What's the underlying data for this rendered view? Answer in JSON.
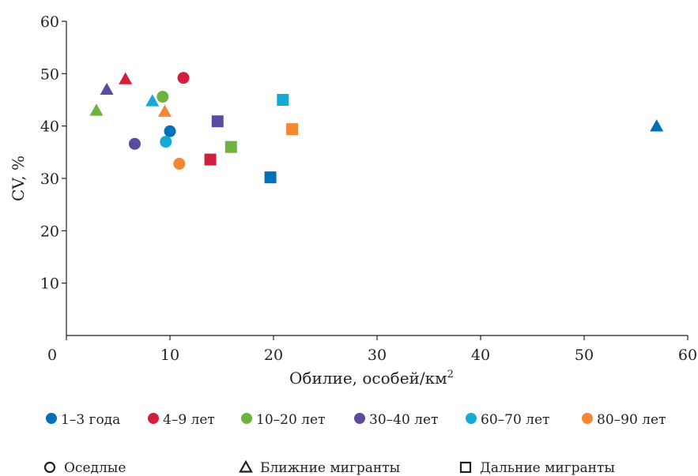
{
  "chart_data": {
    "type": "scatter",
    "xlabel": "Обилие, особей/км",
    "xlabel_sup": "2",
    "ylabel": "CV, %",
    "xlim": [
      0,
      60
    ],
    "ylim": [
      0,
      60
    ],
    "xticks": [
      0,
      10,
      20,
      30,
      40,
      50,
      60
    ],
    "yticks": [
      10,
      20,
      30,
      40,
      50,
      60
    ],
    "xtick_labels": [
      "0",
      "10",
      "20",
      "30",
      "40",
      "50",
      "60"
    ],
    "ytick_labels": [
      "10",
      "20",
      "30",
      "40",
      "50",
      "60"
    ],
    "grid": false,
    "color_legend": [
      {
        "name": "1–3 года",
        "color": "#0070b8"
      },
      {
        "name": "4–9 лет",
        "color": "#d21f3c"
      },
      {
        "name": "10–20 лет",
        "color": "#6db33f"
      },
      {
        "name": "30–40 лет",
        "color": "#5b4a9e"
      },
      {
        "name": "60–70 лет",
        "color": "#14a9d6"
      },
      {
        "name": "80–90 лет",
        "color": "#f58634"
      }
    ],
    "shape_legend": [
      {
        "name": "Оседлые",
        "shape": "circle"
      },
      {
        "name": "Ближние мигранты",
        "shape": "triangle"
      },
      {
        "name": "Дальние мигранты",
        "shape": "square"
      }
    ],
    "series": [
      {
        "group": "1–3 года",
        "shape": "circle",
        "x": 10.0,
        "y": 39.0
      },
      {
        "group": "1–3 года",
        "shape": "triangle",
        "x": 57.0,
        "y": 40.0
      },
      {
        "group": "1–3 года",
        "shape": "square",
        "x": 19.7,
        "y": 30.2
      },
      {
        "group": "4–9 лет",
        "shape": "circle",
        "x": 11.3,
        "y": 49.2
      },
      {
        "group": "4–9 лет",
        "shape": "triangle",
        "x": 5.7,
        "y": 49.0
      },
      {
        "group": "4–9 лет",
        "shape": "square",
        "x": 13.9,
        "y": 33.6
      },
      {
        "group": "10–20 лет",
        "shape": "circle",
        "x": 9.3,
        "y": 45.6
      },
      {
        "group": "10–20 лет",
        "shape": "triangle",
        "x": 2.9,
        "y": 43.0
      },
      {
        "group": "10–20 лет",
        "shape": "square",
        "x": 15.9,
        "y": 36.0
      },
      {
        "group": "30–40 лет",
        "shape": "circle",
        "x": 6.6,
        "y": 36.6
      },
      {
        "group": "30–40 лет",
        "shape": "triangle",
        "x": 3.9,
        "y": 47.0
      },
      {
        "group": "30–40 лет",
        "shape": "square",
        "x": 14.6,
        "y": 40.9
      },
      {
        "group": "60–70 лет",
        "shape": "circle",
        "x": 9.6,
        "y": 37.0
      },
      {
        "group": "60–70 лет",
        "shape": "triangle",
        "x": 8.3,
        "y": 44.8
      },
      {
        "group": "60–70 лет",
        "shape": "square",
        "x": 20.9,
        "y": 45.0
      },
      {
        "group": "80–90 лет",
        "shape": "circle",
        "x": 10.9,
        "y": 32.8
      },
      {
        "group": "80–90 лет",
        "shape": "triangle",
        "x": 9.5,
        "y": 42.8
      },
      {
        "group": "80–90 лет",
        "shape": "square",
        "x": 21.8,
        "y": 39.4
      }
    ]
  }
}
